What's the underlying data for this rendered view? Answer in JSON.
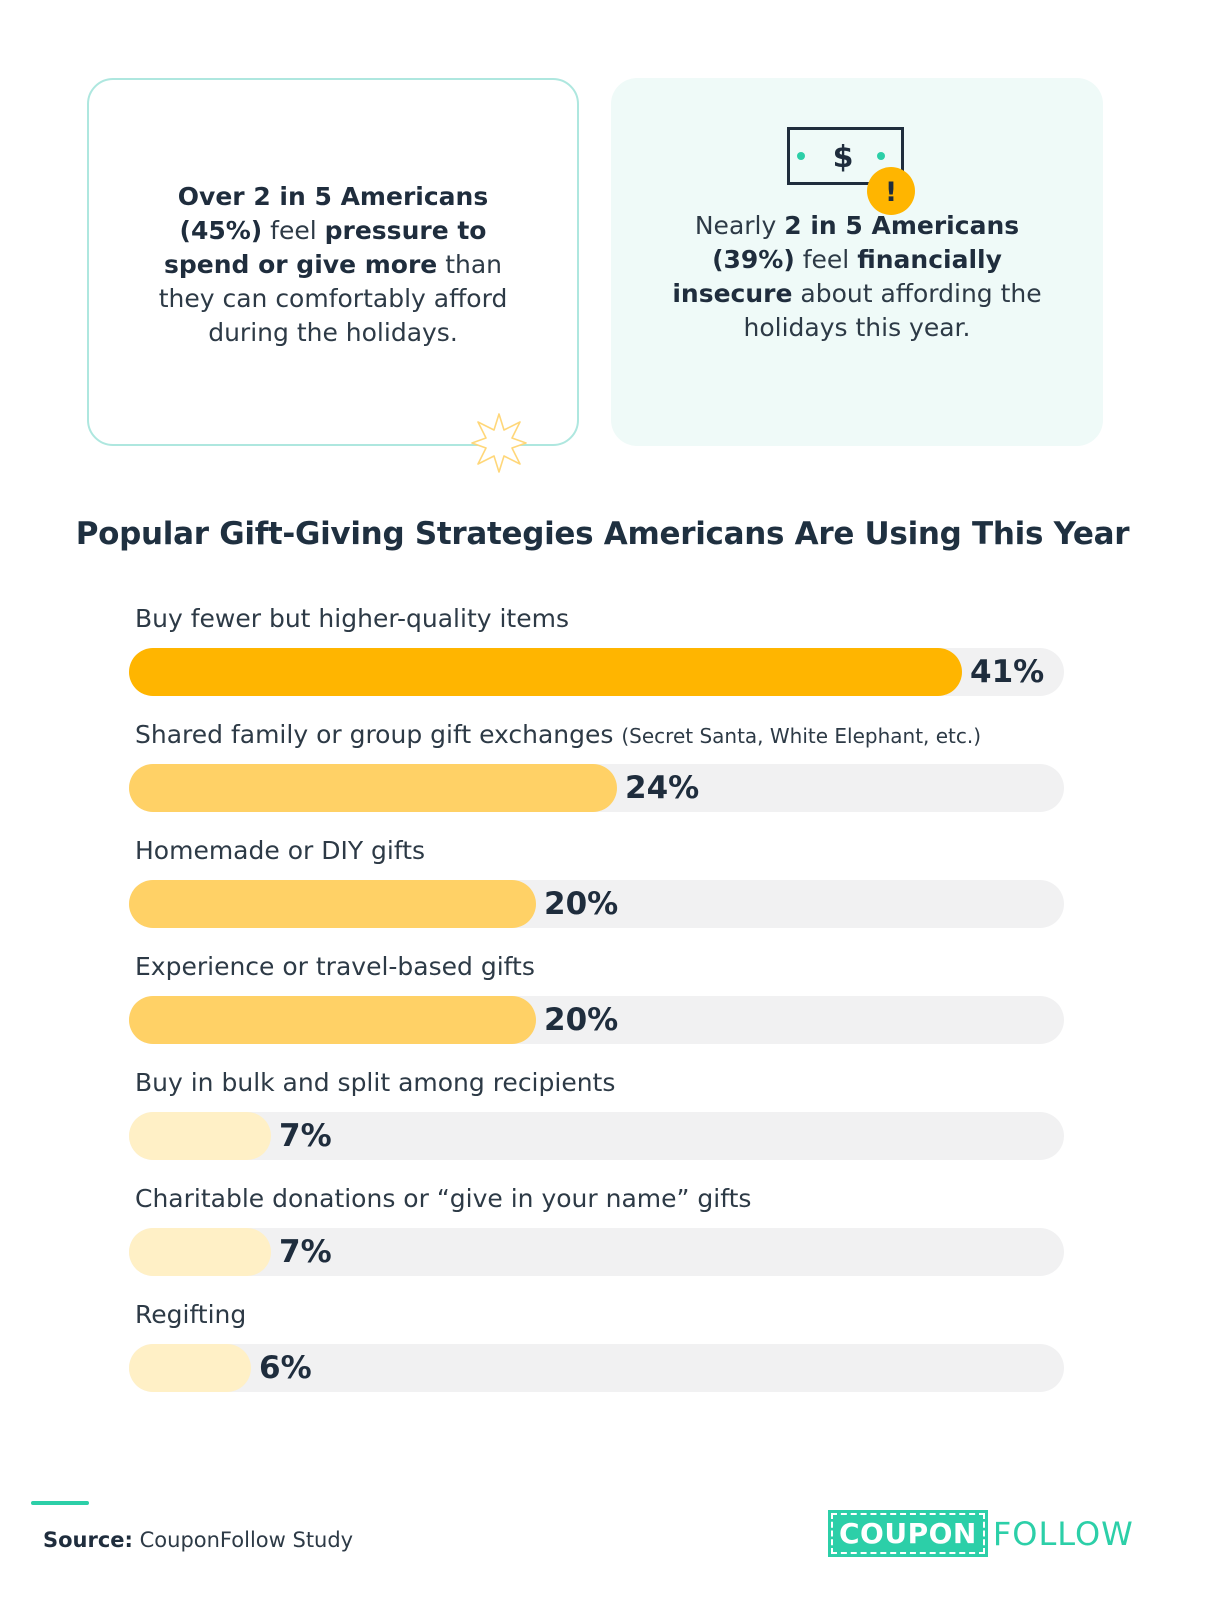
{
  "stat_left": {
    "b1": "Over 2 in 5 Americans (45%)",
    "t1": " feel ",
    "b2": "pressure to spend or give more",
    "t2": " than they can comfortably afford during the holidays."
  },
  "stat_right": {
    "t1": "Nearly ",
    "b1": "2 in 5 Americans (39%)",
    "t2": " feel ",
    "b2": "financially insecure",
    "t3": " about affording the holidays this year."
  },
  "icons": {
    "money": "dollar-bill-icon",
    "alert": "exclamation-icon",
    "star": "sparkle-star-icon"
  },
  "chart_data": {
    "type": "bar",
    "orientation": "horizontal",
    "title": "Popular Gift-Giving Strategies Americans Are Using This Year",
    "categories": [
      "Buy fewer but higher-quality items",
      "Shared family or group gift exchanges",
      "Homemade or DIY gifts",
      "Experience or travel-based gifts",
      "Buy in bulk and split among recipients",
      "Charitable donations or “give in your name” gifts",
      "Regifting"
    ],
    "category_notes": [
      "",
      "(Secret Santa, White Elephant, etc.)",
      "",
      "",
      "",
      "",
      ""
    ],
    "values": [
      41,
      24,
      20,
      20,
      7,
      7,
      6
    ],
    "value_labels": [
      "41%",
      "24%",
      "20%",
      "20%",
      "7%",
      "7%",
      "6%"
    ],
    "bar_colors": [
      "#ffb500",
      "#ffd166",
      "#ffd166",
      "#ffd166",
      "#fff0c6",
      "#fff0c6",
      "#fff0c6"
    ],
    "track_color": "#f1f1f2",
    "xlim": [
      0,
      46
    ],
    "xlabel": "",
    "ylabel": ""
  },
  "footer": {
    "source_label": "Source:",
    "source_text": " CouponFollow Study",
    "logo_box": "COUPON",
    "logo_text": "FOLLOW",
    "accent": "#2ccfa8"
  }
}
